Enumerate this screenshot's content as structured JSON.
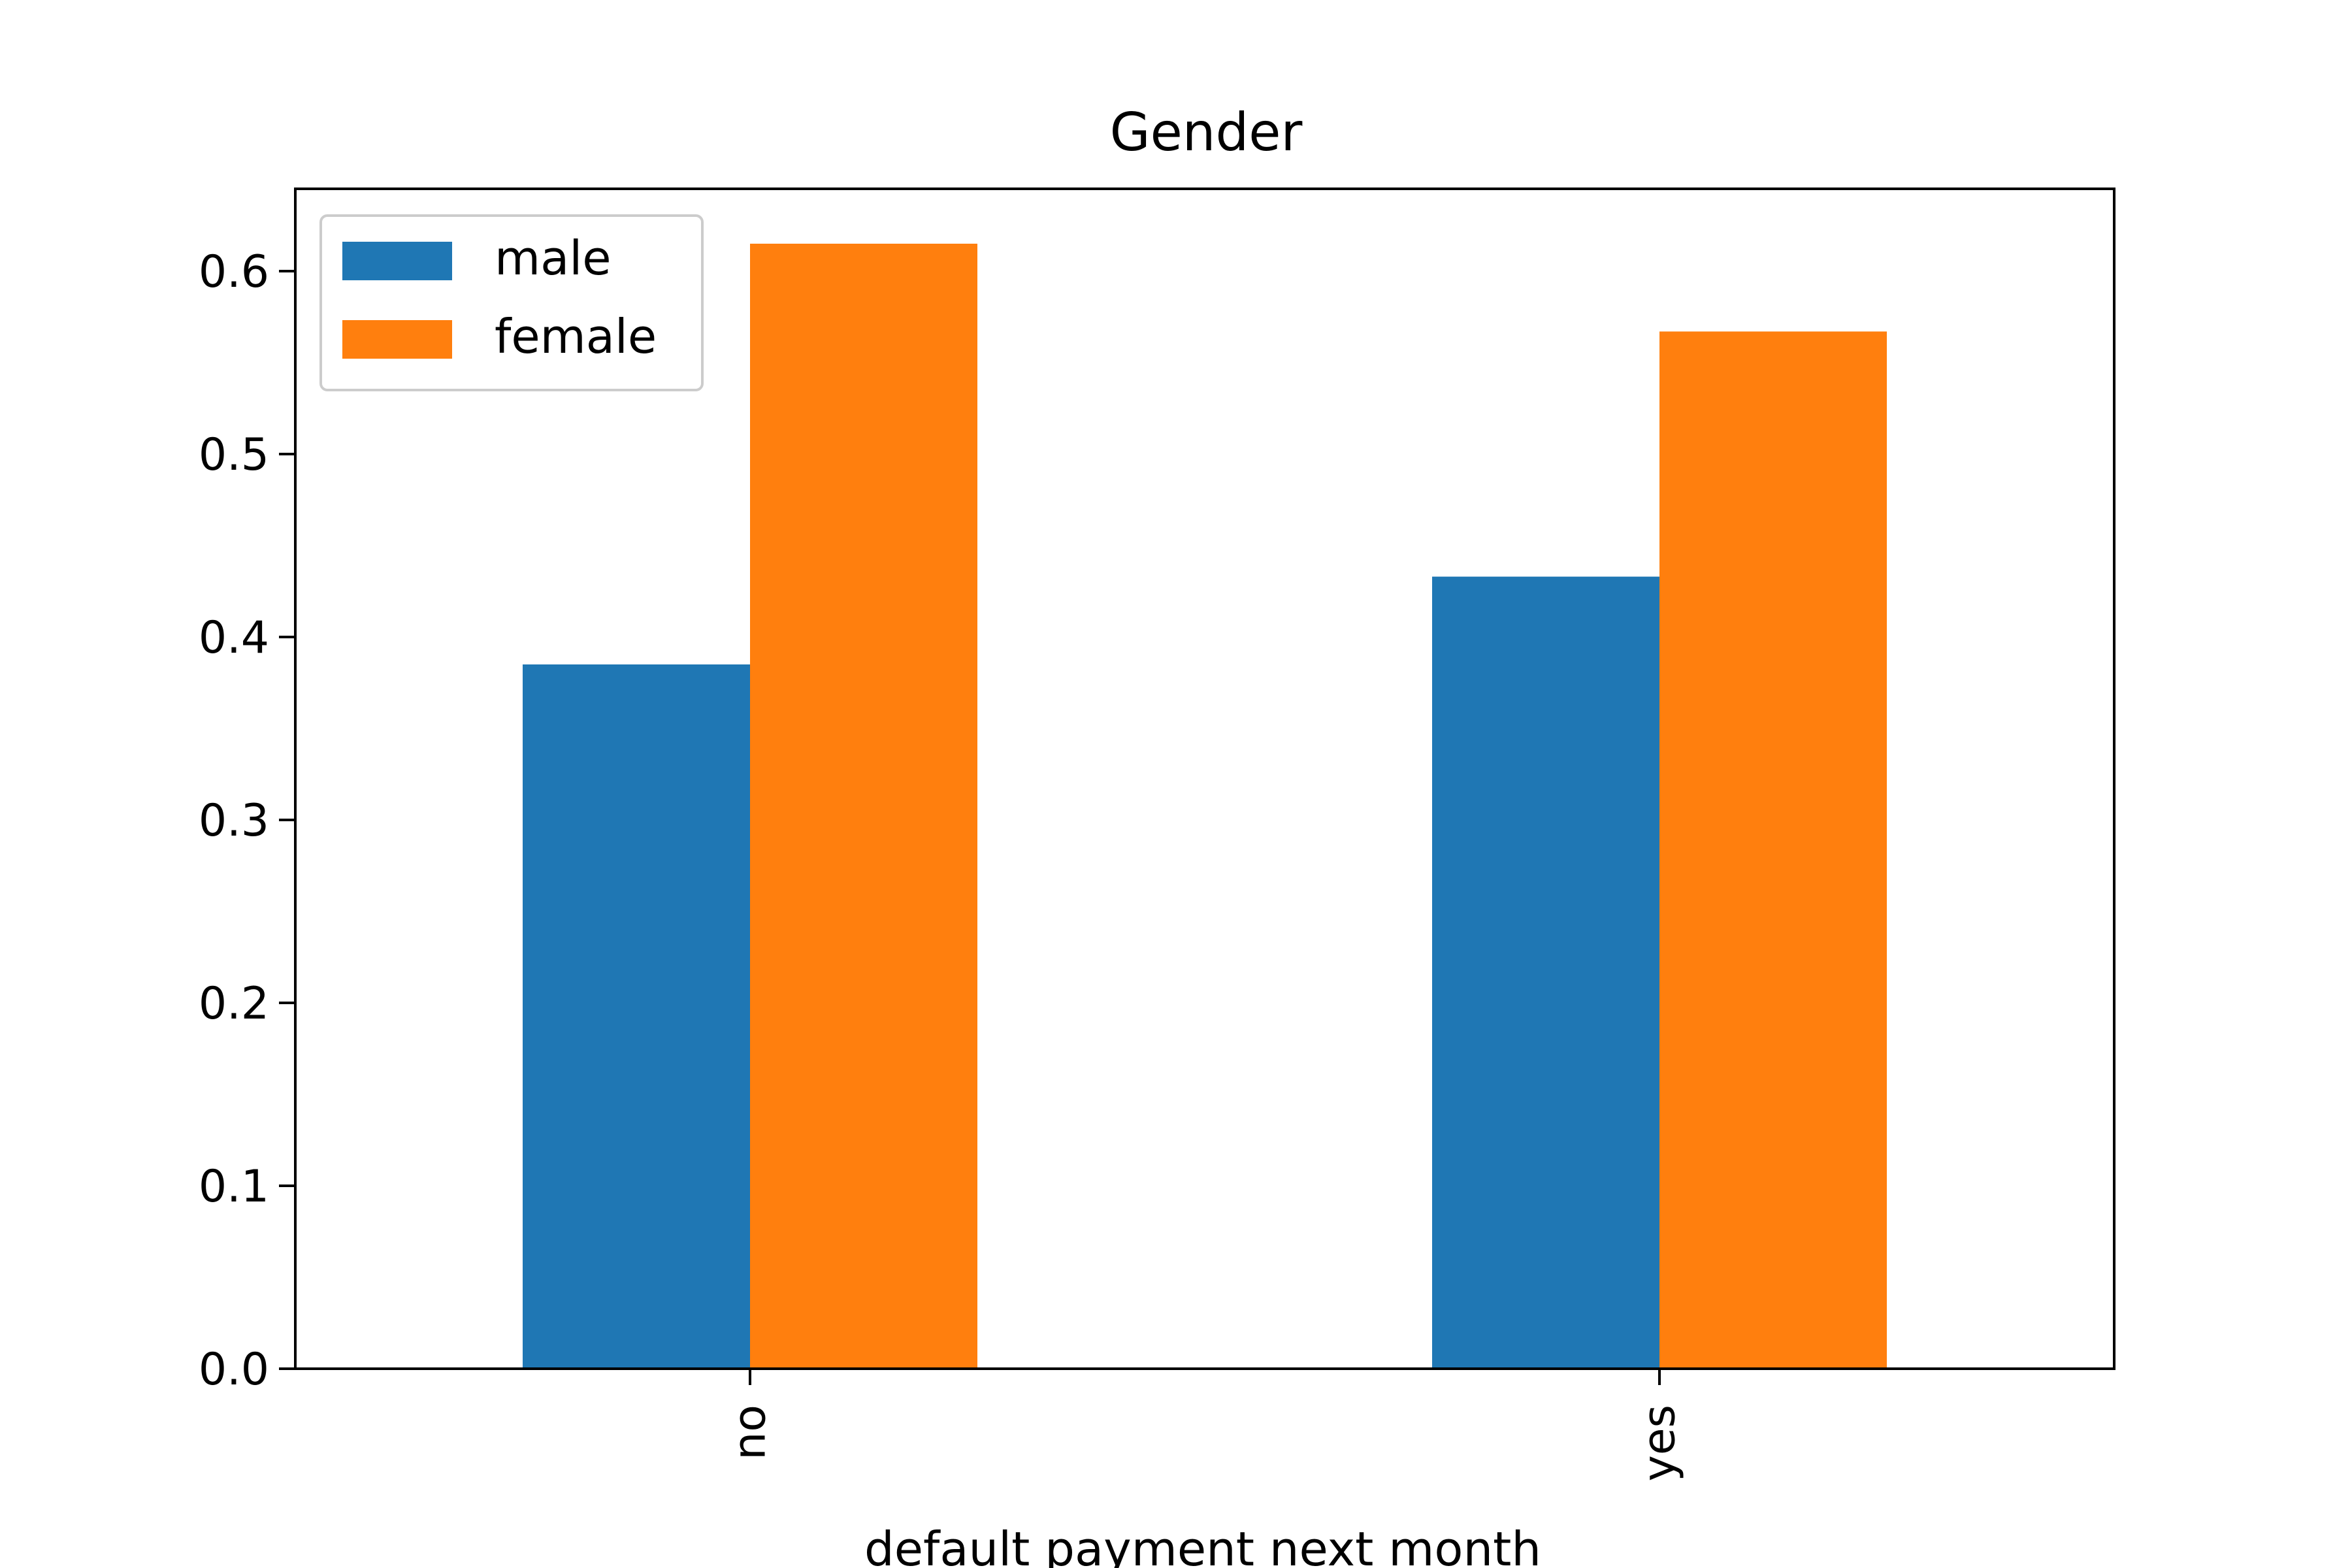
{
  "chart_data": {
    "type": "bar",
    "title": "Gender",
    "xlabel": "default payment next month",
    "ylabel": "",
    "categories": [
      "no",
      "yes"
    ],
    "series": [
      {
        "name": "male",
        "color": "#1f77b4",
        "values": [
          0.385,
          0.433
        ]
      },
      {
        "name": "female",
        "color": "#ff7f0e",
        "values": [
          0.615,
          0.567
        ]
      }
    ],
    "ylim": [
      0,
      0.645
    ],
    "yticks": [
      "0.0",
      "0.1",
      "0.2",
      "0.3",
      "0.4",
      "0.5",
      "0.6"
    ],
    "grid": false,
    "legend_position": "top-left"
  }
}
